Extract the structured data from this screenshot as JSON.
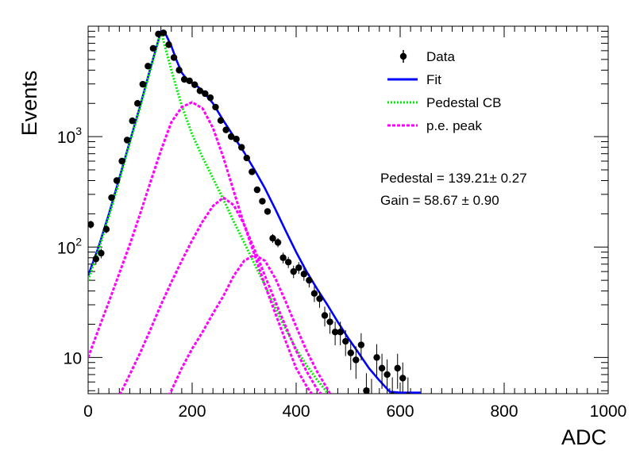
{
  "chart_data": {
    "type": "scatter",
    "title": "",
    "xlabel": "ADC",
    "ylabel": "Events",
    "xlim": [
      0,
      1000
    ],
    "ylim": [
      4.7,
      10000
    ],
    "yscale": "log",
    "grid": false,
    "legend_placement": "top-right",
    "x_tick_labels": [
      "0",
      "200",
      "400",
      "600",
      "800",
      "1000"
    ],
    "y_tick_labels": [
      {
        "value": 10,
        "base": "10",
        "exp": ""
      },
      {
        "value": 100,
        "base": "10",
        "exp": "2"
      },
      {
        "value": 1000,
        "base": "10",
        "exp": "3"
      }
    ],
    "annotations": [
      "Pedestal = 139.21± 0.27",
      "Gain = 58.67 ± 0.90"
    ],
    "legend": [
      {
        "label": "Data",
        "style": "marker",
        "color": "#000000"
      },
      {
        "label": "Fit",
        "style": "solid",
        "color": "#0000ff"
      },
      {
        "label": "Pedestal CB",
        "style": "dotted",
        "color": "#00ee00"
      },
      {
        "label": "p.e. peak",
        "style": "dashed",
        "color": "#ff00ff"
      }
    ],
    "series": [
      {
        "name": "Data",
        "kind": "points",
        "color": "#000000",
        "x": [
          5,
          15,
          25,
          35,
          45,
          55,
          65,
          75,
          85,
          95,
          105,
          115,
          125,
          135,
          145,
          155,
          165,
          175,
          185,
          195,
          205,
          215,
          225,
          235,
          245,
          255,
          265,
          275,
          285,
          295,
          305,
          315,
          325,
          335,
          345,
          355,
          365,
          375,
          385,
          395,
          405,
          415,
          425,
          435,
          445,
          455,
          465,
          475,
          485,
          495,
          505,
          515,
          525,
          535,
          545,
          555,
          565,
          575,
          585,
          595,
          605,
          615
        ],
        "y": [
          160,
          78,
          88,
          145,
          280,
          400,
          600,
          930,
          1390,
          2000,
          2980,
          4350,
          6300,
          8500,
          8700,
          6800,
          5200,
          4000,
          3300,
          3200,
          2950,
          2600,
          2450,
          2250,
          1850,
          1400,
          1150,
          1000,
          950,
          800,
          640,
          480,
          330,
          260,
          210,
          120,
          110,
          80,
          73,
          60,
          65,
          57,
          50,
          38,
          34,
          24,
          21,
          17,
          17,
          14,
          11,
          9.5,
          13,
          5,
          4.3,
          10,
          8,
          7,
          4.5,
          8,
          6.5,
          4.5
        ],
        "err": [
          13,
          9,
          9,
          12,
          17,
          20,
          24,
          30,
          37,
          45,
          55,
          66,
          79,
          92,
          93,
          82,
          72,
          63,
          57,
          56,
          54,
          51,
          49,
          47,
          43,
          37,
          34,
          32,
          31,
          28,
          25,
          22,
          18,
          16,
          14,
          11,
          10.5,
          9,
          8.5,
          7.7,
          8,
          7.5,
          7,
          6.2,
          5.8,
          4.9,
          4.6,
          4.1,
          4.1,
          3.7,
          3.3,
          3.1,
          3.6,
          2.2,
          2.1,
          3.2,
          2.8,
          2.6,
          2.1,
          2.8,
          2.5,
          2.1
        ]
      },
      {
        "name": "Fit",
        "kind": "line",
        "color": "#0000ff",
        "x": [
          0,
          20,
          40,
          60,
          80,
          100,
          120,
          140,
          150,
          160,
          170,
          180,
          190,
          200,
          210,
          220,
          240,
          260,
          280,
          300,
          320,
          340,
          360,
          380,
          400,
          420,
          440,
          460,
          480,
          500,
          520,
          540,
          560,
          580,
          600,
          620,
          640
        ],
        "y": [
          55,
          100,
          200,
          420,
          900,
          1900,
          4200,
          9000,
          8300,
          6600,
          4900,
          3800,
          3300,
          3050,
          2850,
          2600,
          2000,
          1400,
          1000,
          720,
          500,
          340,
          220,
          140,
          90,
          60,
          42,
          30,
          21,
          15,
          11,
          8,
          6.2,
          4.9,
          4.8,
          4.8,
          4.8
        ]
      },
      {
        "name": "Pedestal CB",
        "kind": "line",
        "color": "#00ee00",
        "x": [
          0,
          20,
          40,
          60,
          80,
          100,
          120,
          140,
          160,
          180,
          200,
          220,
          240,
          260,
          280,
          300,
          320,
          340,
          360,
          380,
          400,
          420,
          440,
          460,
          480,
          500
        ],
        "y": [
          50,
          95,
          190,
          400,
          880,
          1850,
          4100,
          9000,
          4000,
          1900,
          1050,
          650,
          420,
          270,
          170,
          110,
          70,
          45,
          28,
          18,
          12,
          8.5,
          6.3,
          4.8,
          4.2,
          3.8
        ]
      },
      {
        "name": "p.e. peak (1 p.e.)",
        "kind": "line",
        "color": "#ff00ff",
        "x": [
          0,
          20,
          40,
          60,
          80,
          100,
          120,
          140,
          160,
          180,
          200,
          220,
          240,
          260,
          280,
          300,
          320,
          340,
          360,
          380,
          400,
          420,
          440,
          460
        ],
        "y": [
          10,
          18,
          32,
          58,
          105,
          200,
          390,
          750,
          1350,
          1850,
          2050,
          1800,
          1200,
          650,
          320,
          160,
          85,
          45,
          25,
          14,
          8,
          5.5,
          4,
          3.5
        ]
      },
      {
        "name": "p.e. peak (2 p.e.)",
        "kind": "line",
        "color": "#ff00ff",
        "x": [
          50,
          60,
          80,
          100,
          120,
          140,
          160,
          180,
          200,
          220,
          240,
          260,
          280,
          300,
          320,
          340,
          360,
          380,
          400,
          420,
          440,
          460,
          480
        ],
        "y": [
          3.5,
          4.5,
          7,
          11,
          18,
          30,
          48,
          75,
          115,
          170,
          235,
          280,
          240,
          160,
          95,
          55,
          32,
          19,
          11.5,
          7.5,
          5.2,
          4,
          3.5
        ]
      },
      {
        "name": "p.e. peak (3 p.e.)",
        "kind": "line",
        "color": "#ff00ff",
        "x": [
          140,
          160,
          180,
          200,
          220,
          240,
          260,
          280,
          300,
          320,
          340,
          360,
          380,
          400,
          420,
          440,
          460,
          480
        ],
        "y": [
          3.5,
          5,
          8,
          12,
          17,
          25,
          36,
          55,
          75,
          85,
          75,
          52,
          32,
          19,
          11.5,
          7.5,
          5.2,
          3.5
        ]
      }
    ]
  }
}
